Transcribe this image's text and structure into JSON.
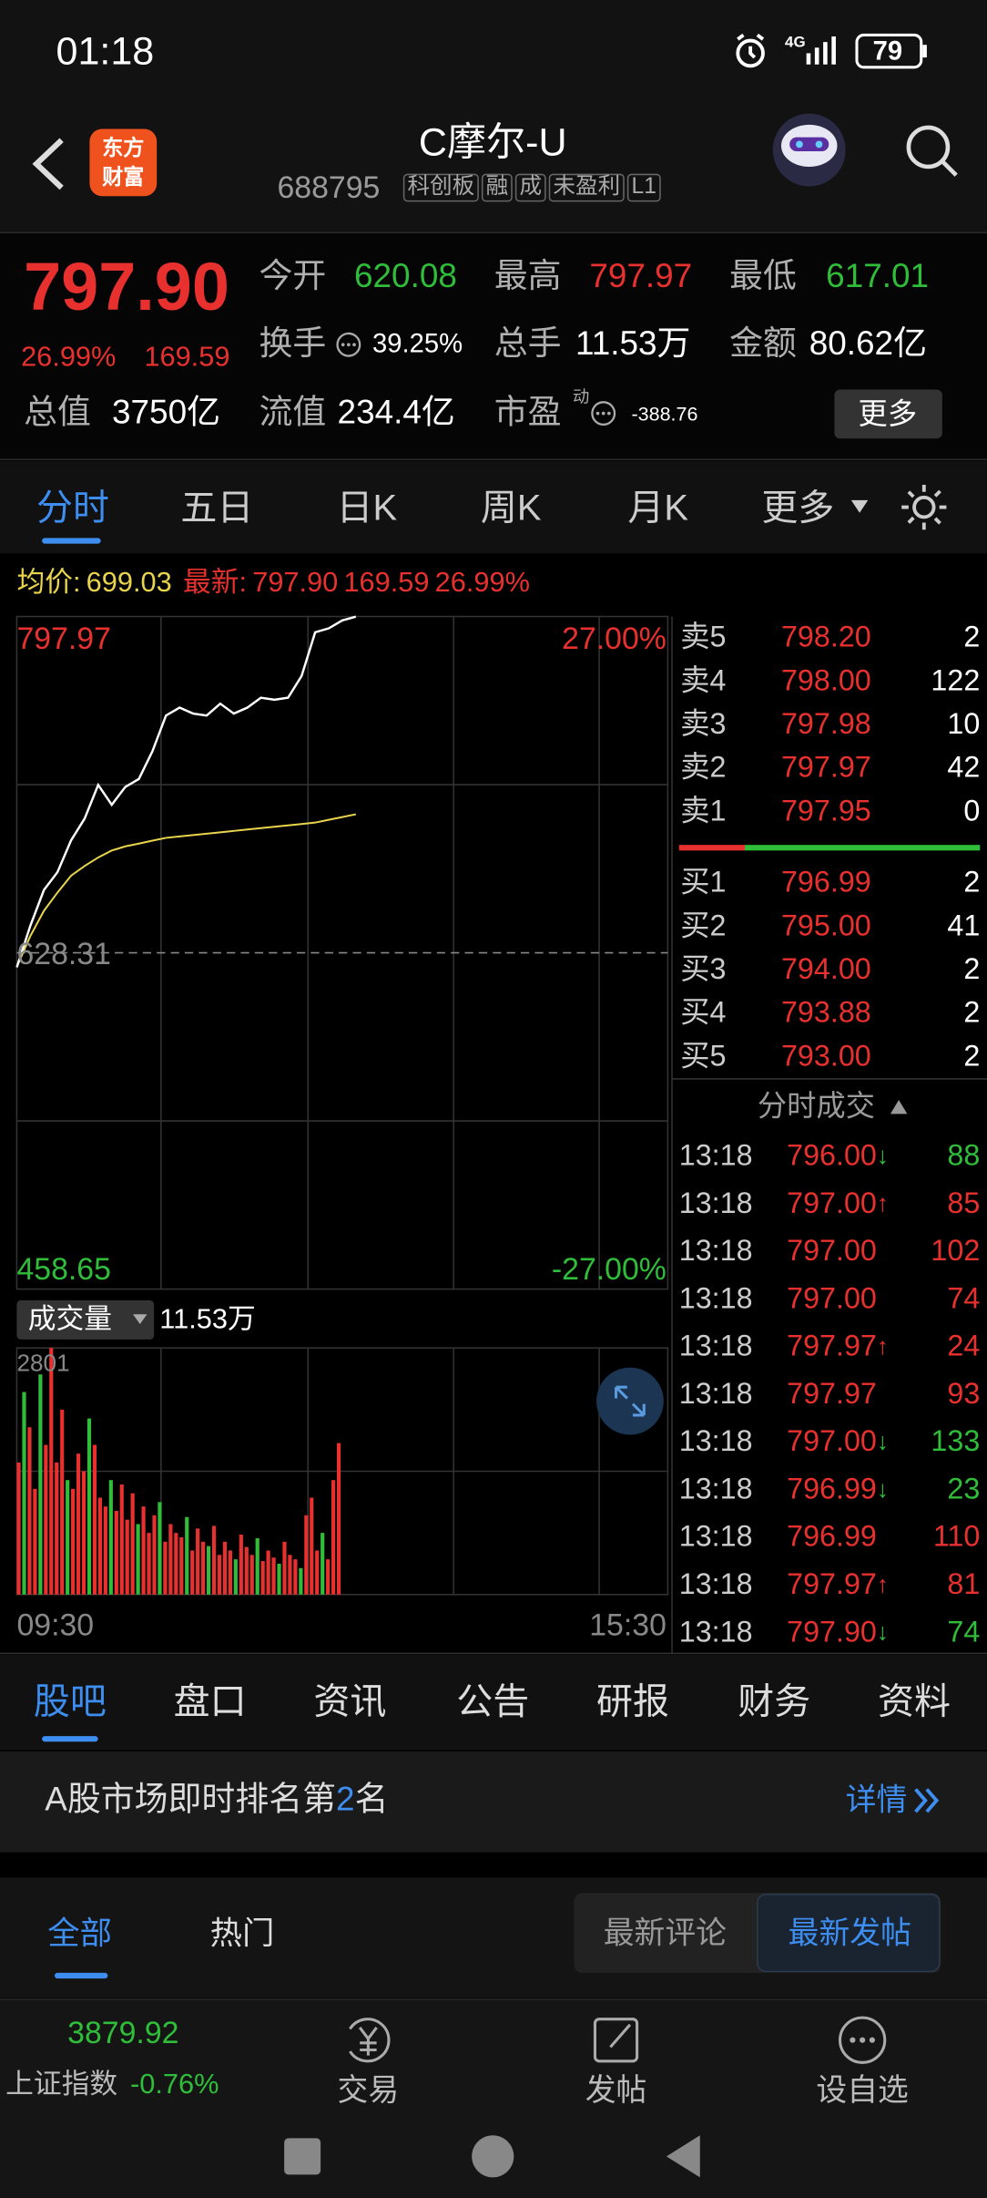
{
  "status_bar": {
    "time": "01:18",
    "network": "4G",
    "battery": "79"
  },
  "header": {
    "logo": [
      "东方",
      "财富"
    ],
    "name": "C摩尔-U",
    "code": "688795",
    "tags": [
      "科创板",
      "融",
      "成",
      "未盈利",
      "L1"
    ]
  },
  "quote": {
    "price": "797.90",
    "change_pct": "26.99%",
    "change": "169.59",
    "fields": [
      {
        "label": "今开",
        "value": "620.08",
        "color": "#2fbd3a"
      },
      {
        "label": "最高",
        "value": "797.97",
        "color": "#e8312f"
      },
      {
        "label": "最低",
        "value": "617.01",
        "color": "#2fbd3a"
      },
      {
        "label": "换手",
        "value": "39.25%",
        "color": "#ffffff"
      },
      {
        "label": "总手",
        "value": "11.53万",
        "color": "#ffffff"
      },
      {
        "label": "金额",
        "value": "80.62亿",
        "color": "#ffffff"
      },
      {
        "label": "总值",
        "value": "3750亿",
        "color": "#ffffff"
      },
      {
        "label": "流值",
        "value": "234.4亿",
        "color": "#ffffff"
      },
      {
        "label": "市盈",
        "value": "-388.76",
        "color": "#ffffff"
      }
    ],
    "pe_mark": "动",
    "more_button": "更多"
  },
  "tabs": [
    "分时",
    "五日",
    "日K",
    "周K",
    "月K",
    "更多"
  ],
  "chart_info": {
    "avg_label": "均价:",
    "avg": "699.03",
    "latest_label": "最新:",
    "latest": "797.90",
    "change": "169.59",
    "change_pct": "26.99%"
  },
  "chart": {
    "y_top": "797.97",
    "y_top_pct": "27.00%",
    "y_mid": "628.31",
    "y_bottom": "458.65",
    "y_bottom_pct": "-27.00%",
    "line_color": "#ffffff",
    "avg_color": "#e8d44d",
    "price": [
      621,
      642,
      660,
      669,
      685,
      696,
      713,
      703,
      712,
      716,
      730,
      748,
      752,
      749,
      748,
      754,
      749,
      752,
      757,
      756,
      757,
      768,
      790,
      792,
      796,
      797.9
    ],
    "avg": [
      621.2,
      636.8,
      649.5,
      658.7,
      667.2,
      672.1,
      676.4,
      679.9,
      682.0,
      683.4,
      684.9,
      686.3,
      687.0,
      687.7,
      688.4,
      689.1,
      689.8,
      690.5,
      691.2,
      691.9,
      692.6,
      693.3,
      694.0,
      695.4,
      696.8,
      698.2
    ],
    "volume_label": "成交量",
    "volume_total": "11.53万",
    "volume_max": "2801",
    "volume": [
      1500,
      2300,
      1900,
      1200,
      2500,
      1700,
      2801,
      1500,
      2100,
      1300,
      1200,
      1600,
      1400,
      2000,
      1700,
      1100,
      1000,
      1300,
      950,
      1250,
      850,
      1150,
      800,
      1000,
      700,
      900,
      1050,
      600,
      800,
      700,
      650,
      880,
      500,
      750,
      600,
      550,
      780,
      450,
      600,
      500,
      400,
      680,
      540,
      450,
      640,
      380,
      500,
      420,
      350,
      600,
      450,
      400,
      300,
      900,
      1100,
      500,
      700,
      400,
      1300,
      1720
    ],
    "volume_colors": [
      "#e8312f",
      "#2fbd3a",
      "#e8312f",
      "#e8312f",
      "#2fbd3a",
      "#e8312f",
      "#e8312f",
      "#e8312f",
      "#e8312f",
      "#2fbd3a",
      "#e8312f",
      "#e8312f",
      "#e8312f",
      "#2fbd3a",
      "#e8312f",
      "#e8312f",
      "#e8312f",
      "#2fbd3a",
      "#e8312f",
      "#e8312f",
      "#e8312f",
      "#e8312f",
      "#2fbd3a",
      "#e8312f",
      "#e8312f",
      "#e8312f",
      "#2fbd3a",
      "#e8312f",
      "#e8312f",
      "#e8312f",
      "#e8312f",
      "#2fbd3a",
      "#e8312f",
      "#e8312f",
      "#e8312f",
      "#2fbd3a",
      "#e8312f",
      "#e8312f",
      "#e8312f",
      "#e8312f",
      "#2fbd3a",
      "#e8312f",
      "#e8312f",
      "#e8312f",
      "#2fbd3a",
      "#e8312f",
      "#e8312f",
      "#e8312f",
      "#2fbd3a",
      "#e8312f",
      "#e8312f",
      "#e8312f",
      "#2fbd3a",
      "#e8312f",
      "#e8312f",
      "#e8312f",
      "#2fbd3a",
      "#e8312f",
      "#e8312f",
      "#e8312f"
    ],
    "time_start": "09:30",
    "time_end": "15:30"
  },
  "order_book": {
    "asks": [
      {
        "label": "卖5",
        "price": "798.20",
        "qty": "2"
      },
      {
        "label": "卖4",
        "price": "798.00",
        "qty": "122"
      },
      {
        "label": "卖3",
        "price": "797.98",
        "qty": "10"
      },
      {
        "label": "卖2",
        "price": "797.97",
        "qty": "42"
      },
      {
        "label": "卖1",
        "price": "797.95",
        "qty": "0"
      }
    ],
    "bids": [
      {
        "label": "买1",
        "price": "796.99",
        "qty": "2"
      },
      {
        "label": "买2",
        "price": "795.00",
        "qty": "41"
      },
      {
        "label": "买3",
        "price": "794.00",
        "qty": "2"
      },
      {
        "label": "买4",
        "price": "793.88",
        "qty": "2"
      },
      {
        "label": "买5",
        "price": "793.00",
        "qty": "2"
      }
    ]
  },
  "trades": {
    "title": "分时成交",
    "rows": [
      {
        "time": "13:18",
        "price": "796.00",
        "dir": "↓",
        "qty": "88",
        "color": "#2fbd3a"
      },
      {
        "time": "13:18",
        "price": "797.00",
        "dir": "↑",
        "qty": "85",
        "color": "#e8312f"
      },
      {
        "time": "13:18",
        "price": "797.00",
        "dir": "",
        "qty": "102",
        "color": "#e8312f"
      },
      {
        "time": "13:18",
        "price": "797.00",
        "dir": "",
        "qty": "74",
        "color": "#e8312f"
      },
      {
        "time": "13:18",
        "price": "797.97",
        "dir": "↑",
        "qty": "24",
        "color": "#e8312f"
      },
      {
        "time": "13:18",
        "price": "797.97",
        "dir": "",
        "qty": "93",
        "color": "#e8312f"
      },
      {
        "time": "13:18",
        "price": "797.00",
        "dir": "↓",
        "qty": "133",
        "color": "#2fbd3a"
      },
      {
        "time": "13:18",
        "price": "796.99",
        "dir": "↓",
        "qty": "23",
        "color": "#2fbd3a"
      },
      {
        "time": "13:18",
        "price": "796.99",
        "dir": "",
        "qty": "110",
        "color": "#e8312f"
      },
      {
        "time": "13:18",
        "price": "797.97",
        "dir": "↑",
        "qty": "81",
        "color": "#e8312f"
      },
      {
        "time": "13:18",
        "price": "797.90",
        "dir": "↓",
        "qty": "74",
        "color": "#2fbd3a"
      }
    ]
  },
  "section_tabs": [
    "股吧",
    "盘口",
    "资讯",
    "公告",
    "研报",
    "财务",
    "资料"
  ],
  "banner": {
    "text": "A股市场即时排名第",
    "rank": "2",
    "suffix": "名",
    "link": "详情"
  },
  "filters": {
    "left": [
      "全部",
      "热门"
    ],
    "right": [
      "最新评论",
      "最新发帖"
    ]
  },
  "bottom_nav": {
    "index_value": "3879.92",
    "index_name": "上证指数",
    "index_change": "-0.76%",
    "items": [
      "交易",
      "发帖",
      "设自选"
    ]
  }
}
